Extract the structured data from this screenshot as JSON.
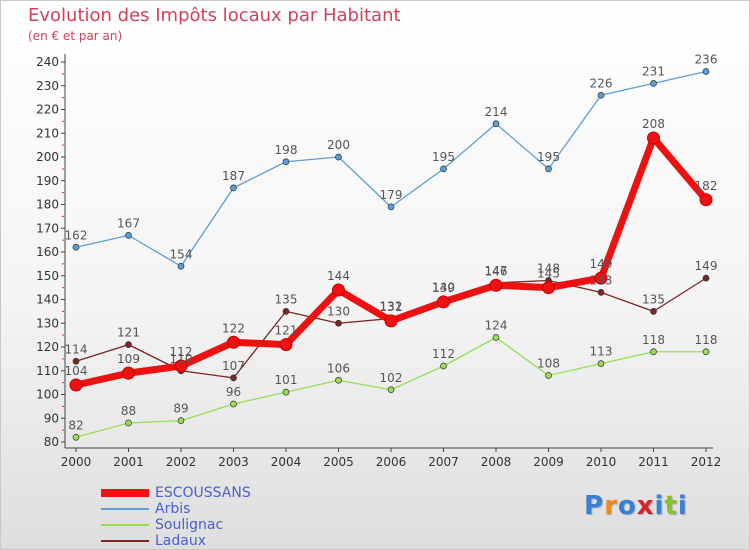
{
  "header": {
    "title": "Evolution des Impôts locaux par Habitant",
    "subtitle": "(en € et par an)"
  },
  "logo": {
    "text": "Proxiti"
  },
  "chart_data": {
    "type": "line",
    "title": "Evolution des Impôts locaux par Habitant",
    "subtitle": "(en € et par an)",
    "xlabel": "",
    "ylabel": "",
    "x": [
      "2000",
      "2001",
      "2002",
      "2003",
      "2004",
      "2005",
      "2006",
      "2007",
      "2008",
      "2009",
      "2010",
      "2011",
      "2012"
    ],
    "ylim": [
      80,
      240
    ],
    "yticks": [
      80,
      90,
      100,
      110,
      120,
      130,
      140,
      150,
      160,
      170,
      180,
      190,
      200,
      210,
      220,
      230,
      240
    ],
    "grid": false,
    "legend_position": "bottom-left",
    "series": [
      {
        "name": "ESCOUSSANS",
        "color": "#ee1111",
        "values": [
          104,
          109,
          112,
          122,
          121,
          144,
          131,
          139,
          146,
          145,
          149,
          208,
          182
        ]
      },
      {
        "name": "Arbis",
        "color": "#5c9ed6",
        "values": [
          162,
          167,
          154,
          187,
          198,
          200,
          179,
          195,
          214,
          195,
          226,
          231,
          236
        ]
      },
      {
        "name": "Soulignac",
        "color": "#99dd55",
        "values": [
          82,
          88,
          89,
          96,
          101,
          106,
          102,
          112,
          124,
          108,
          113,
          118,
          118
        ]
      },
      {
        "name": "Ladaux",
        "color": "#7a2626",
        "values": [
          114,
          121,
          110,
          107,
          135,
          130,
          132,
          140,
          147,
          148,
          143,
          135,
          149
        ]
      }
    ]
  }
}
